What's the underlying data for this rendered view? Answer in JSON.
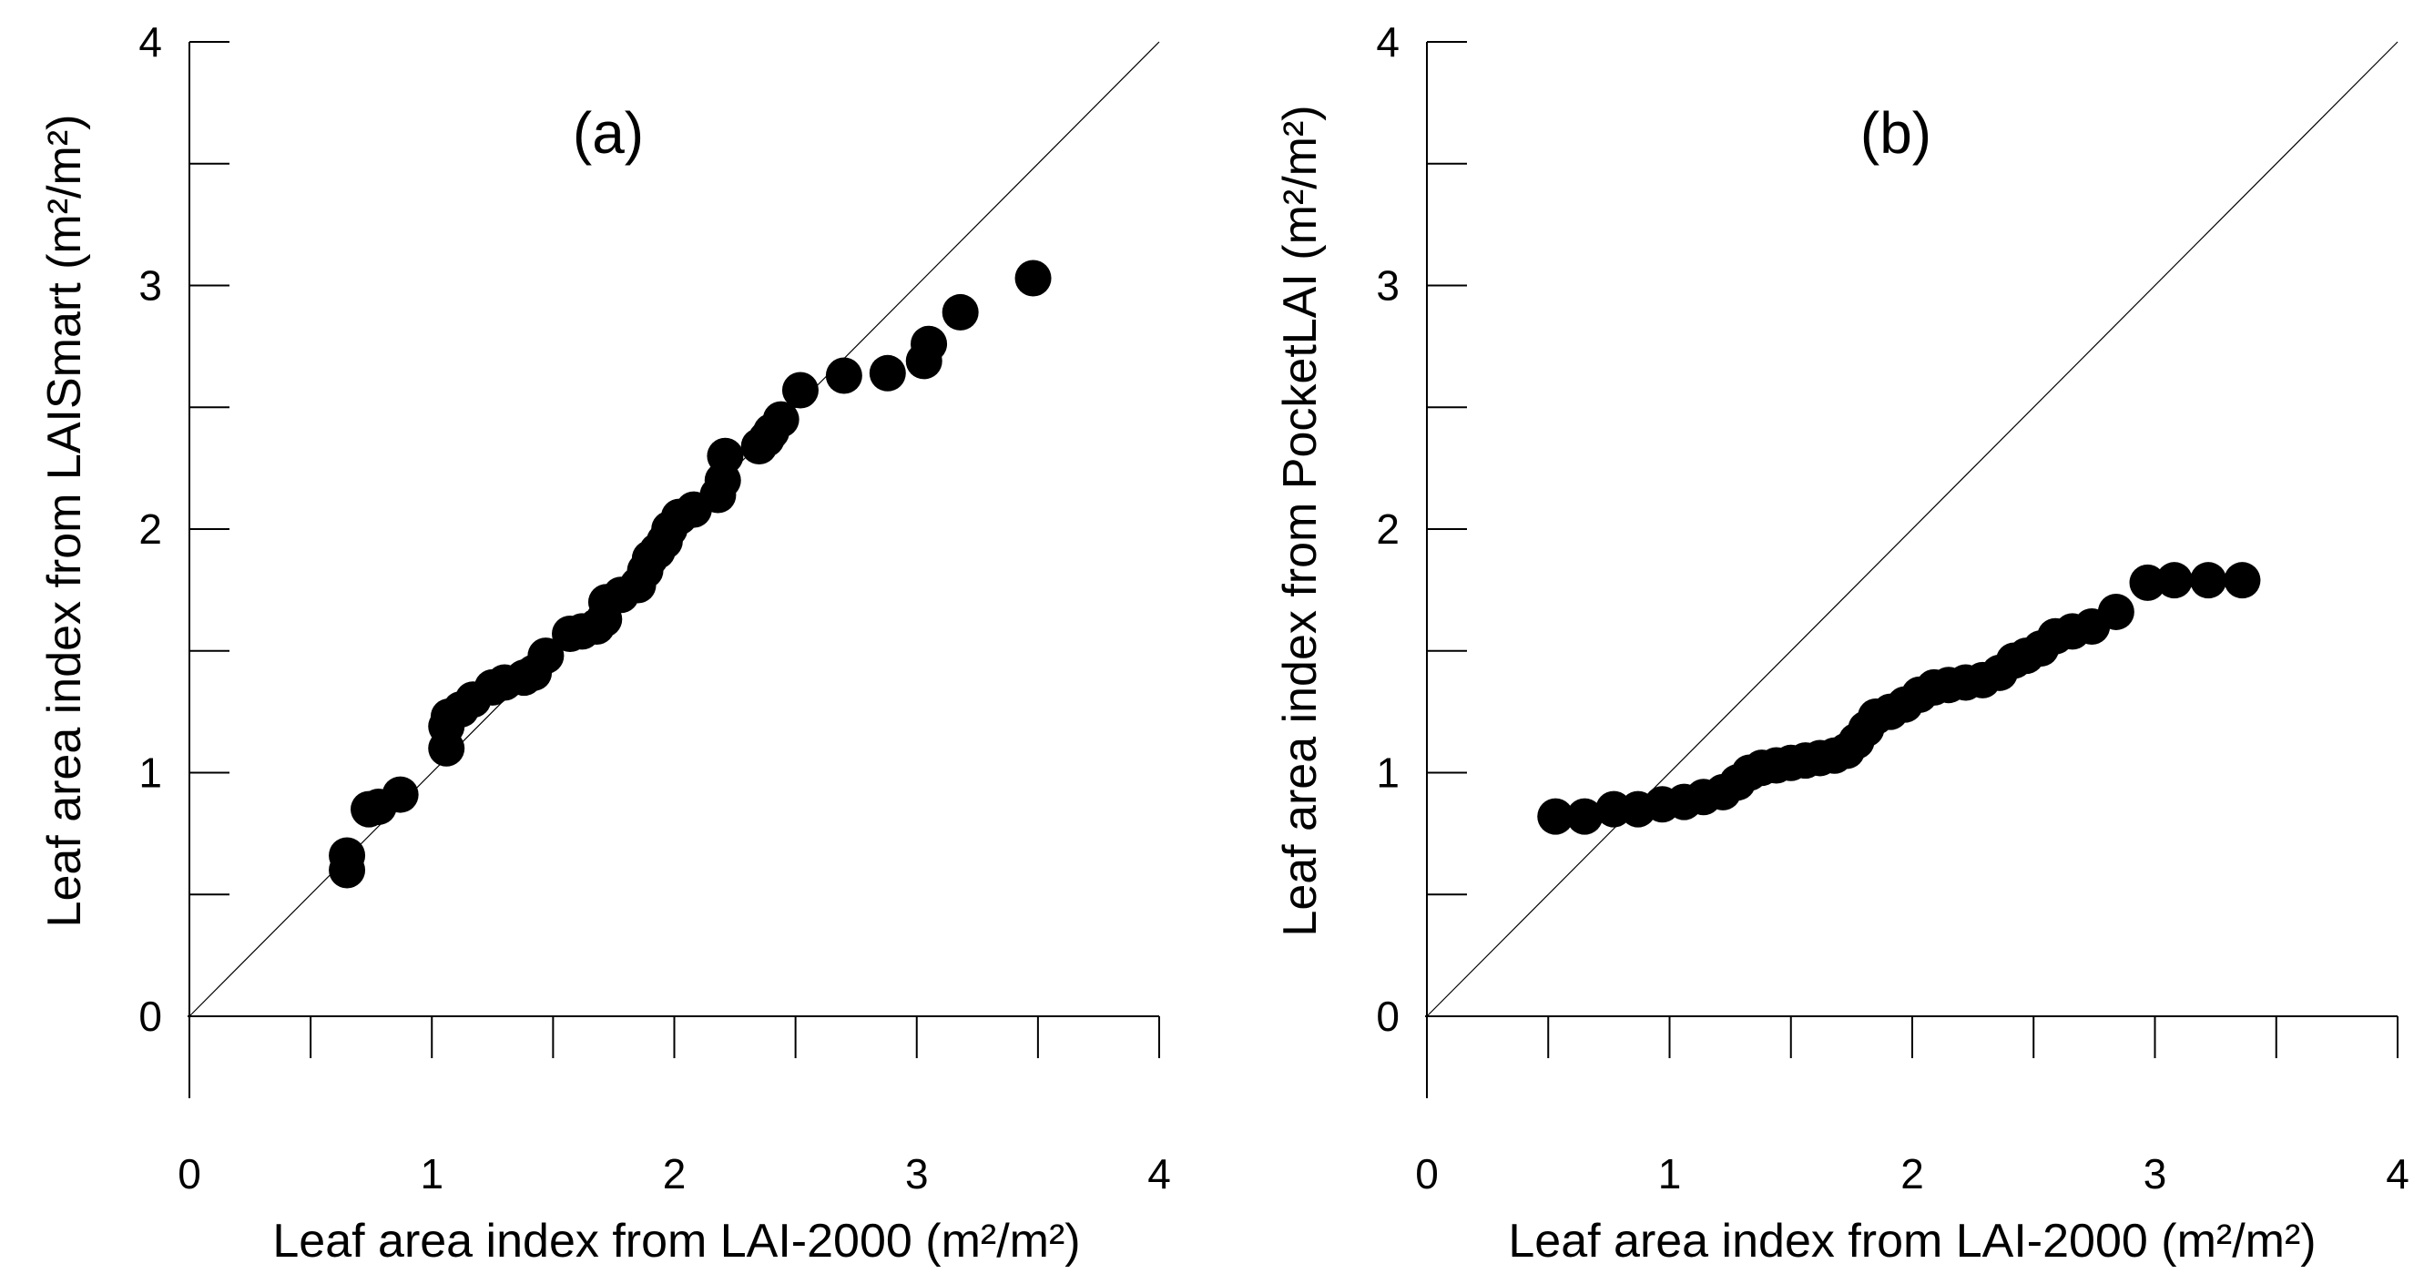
{
  "chart_data": [
    {
      "type": "scatter",
      "panel_label": "(a)",
      "xlabel": "Leaf area index from LAI-2000 (m²/m²)",
      "ylabel": "Leaf area index from LAISmart (m²/m²)",
      "xlim": [
        0,
        4
      ],
      "ylim": [
        0,
        4
      ],
      "x_ticks": [
        "0",
        "1",
        "2",
        "3",
        "4"
      ],
      "y_ticks": [
        "0",
        "1",
        "2",
        "3",
        "4"
      ],
      "reference_line": "1:1",
      "grid": false,
      "series": [
        {
          "points": [
            [
              0.65,
              0.6
            ],
            [
              0.65,
              0.66
            ],
            [
              0.74,
              0.85
            ],
            [
              0.78,
              0.86
            ],
            [
              0.87,
              0.91
            ],
            [
              1.06,
              1.1
            ],
            [
              1.06,
              1.19
            ],
            [
              1.07,
              1.23
            ],
            [
              1.12,
              1.26
            ],
            [
              1.17,
              1.3
            ],
            [
              1.25,
              1.35
            ],
            [
              1.3,
              1.37
            ],
            [
              1.38,
              1.39
            ],
            [
              1.42,
              1.41
            ],
            [
              1.47,
              1.48
            ],
            [
              1.57,
              1.57
            ],
            [
              1.62,
              1.58
            ],
            [
              1.68,
              1.6
            ],
            [
              1.71,
              1.63
            ],
            [
              1.72,
              1.7
            ],
            [
              1.78,
              1.73
            ],
            [
              1.85,
              1.77
            ],
            [
              1.88,
              1.83
            ],
            [
              1.9,
              1.88
            ],
            [
              1.93,
              1.91
            ],
            [
              1.96,
              1.95
            ],
            [
              1.98,
              2.0
            ],
            [
              2.02,
              2.05
            ],
            [
              2.08,
              2.08
            ],
            [
              2.18,
              2.14
            ],
            [
              2.2,
              2.2
            ],
            [
              2.21,
              2.3
            ],
            [
              2.35,
              2.34
            ],
            [
              2.38,
              2.37
            ],
            [
              2.4,
              2.4
            ],
            [
              2.44,
              2.45
            ],
            [
              2.52,
              2.57
            ],
            [
              2.7,
              2.63
            ],
            [
              2.88,
              2.64
            ],
            [
              3.03,
              2.69
            ],
            [
              3.05,
              2.76
            ],
            [
              3.18,
              2.89
            ],
            [
              3.48,
              3.03
            ]
          ]
        }
      ]
    },
    {
      "type": "scatter",
      "panel_label": "(b)",
      "xlabel": "Leaf area index from LAI-2000 (m²/m²)",
      "ylabel": "Leaf area index from PocketLAI (m²/m²)",
      "xlim": [
        0,
        4
      ],
      "ylim": [
        0,
        4
      ],
      "x_ticks": [
        "0",
        "1",
        "2",
        "3",
        "4"
      ],
      "y_ticks": [
        "0",
        "1",
        "2",
        "3",
        "4"
      ],
      "reference_line": "1:1",
      "grid": false,
      "series": [
        {
          "points": [
            [
              0.53,
              0.82
            ],
            [
              0.65,
              0.82
            ],
            [
              0.77,
              0.85
            ],
            [
              0.87,
              0.85
            ],
            [
              0.97,
              0.87
            ],
            [
              1.06,
              0.88
            ],
            [
              1.14,
              0.9
            ],
            [
              1.22,
              0.92
            ],
            [
              1.28,
              0.96
            ],
            [
              1.33,
              1.0
            ],
            [
              1.38,
              1.02
            ],
            [
              1.44,
              1.03
            ],
            [
              1.5,
              1.04
            ],
            [
              1.56,
              1.05
            ],
            [
              1.62,
              1.06
            ],
            [
              1.68,
              1.07
            ],
            [
              1.73,
              1.09
            ],
            [
              1.77,
              1.13
            ],
            [
              1.81,
              1.18
            ],
            [
              1.85,
              1.23
            ],
            [
              1.91,
              1.25
            ],
            [
              1.97,
              1.28
            ],
            [
              2.03,
              1.32
            ],
            [
              2.09,
              1.35
            ],
            [
              2.15,
              1.36
            ],
            [
              2.22,
              1.37
            ],
            [
              2.29,
              1.38
            ],
            [
              2.36,
              1.41
            ],
            [
              2.42,
              1.46
            ],
            [
              2.47,
              1.48
            ],
            [
              2.53,
              1.51
            ],
            [
              2.59,
              1.56
            ],
            [
              2.66,
              1.58
            ],
            [
              2.74,
              1.6
            ],
            [
              2.84,
              1.66
            ],
            [
              2.97,
              1.78
            ],
            [
              3.08,
              1.79
            ],
            [
              3.22,
              1.79
            ],
            [
              3.36,
              1.79
            ]
          ]
        }
      ]
    }
  ]
}
